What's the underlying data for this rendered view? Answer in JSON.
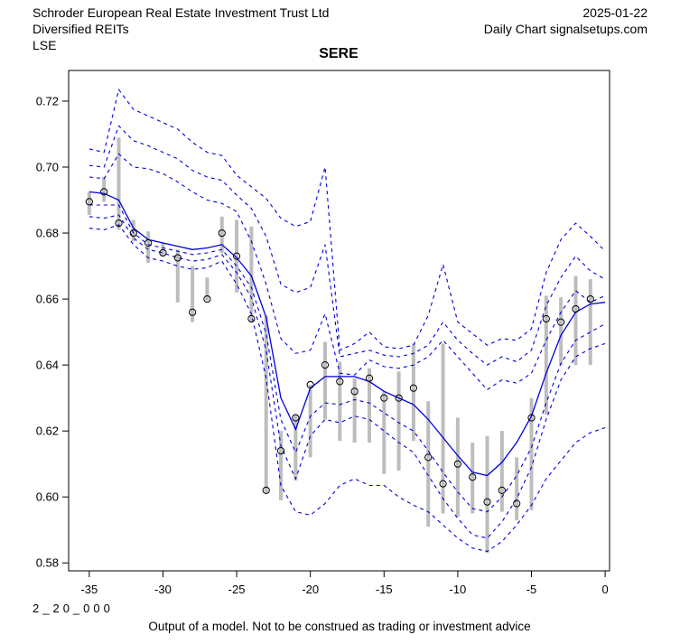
{
  "header": {
    "company": "Schroder European Real Estate Investment Trust Ltd",
    "sector": "Diversified REITs",
    "exchange": "LSE",
    "date": "2025-01-22",
    "chart_source": "Daily Chart signalsetups.com"
  },
  "title": "SERE",
  "footer": {
    "model_id": "2_20_000",
    "disclaimer": "Output of a model. Not to be construed as trading or investment advice"
  },
  "colors": {
    "model_line_blue": "#0000dd",
    "price_bar_gray": "#bdbdbd",
    "marker_stroke_black": "#000000",
    "axis_black": "#000000"
  },
  "chart_data": {
    "type": "line",
    "title": "SERE",
    "xlabel": "",
    "ylabel": "",
    "grid": false,
    "legend": "none",
    "xlim": [
      -36.4,
      0.3
    ],
    "ylim": [
      0.5776,
      0.7293
    ],
    "x_ticks": [
      -35,
      -30,
      -25,
      -20,
      -15,
      -10,
      -5,
      0
    ],
    "y_ticks": [
      0.58,
      0.6,
      0.62,
      0.64,
      0.66,
      0.68,
      0.7,
      0.72
    ],
    "x": [
      -35,
      -34,
      -33,
      -32,
      -31,
      -30,
      -29,
      -28,
      -27,
      -26,
      -25,
      -24,
      -23,
      -22,
      -21,
      -20,
      -19,
      -18,
      -17,
      -16,
      -15,
      -14,
      -13,
      -12,
      -11,
      -10,
      -9,
      -8,
      -7,
      -6,
      -5,
      -4,
      -3,
      -2,
      -1,
      0
    ],
    "series": [
      {
        "name": "lower-quantile-3",
        "style": "dashed",
        "values": [
          0.6815,
          0.681,
          0.6825,
          0.6765,
          0.6725,
          0.6715,
          0.67,
          0.669,
          0.6695,
          0.6715,
          0.6645,
          0.6555,
          0.636,
          0.6035,
          0.5955,
          0.5945,
          0.598,
          0.6035,
          0.6055,
          0.6035,
          0.6035,
          0.6,
          0.5975,
          0.5955,
          0.5915,
          0.5875,
          0.5845,
          0.5835,
          0.5865,
          0.5915,
          0.5975,
          0.6055,
          0.611,
          0.6165,
          0.6195,
          0.621
        ]
      },
      {
        "name": "lower-quantile-2",
        "style": "dashed",
        "values": [
          0.685,
          0.6845,
          0.6855,
          0.6785,
          0.675,
          0.674,
          0.6725,
          0.6715,
          0.672,
          0.6735,
          0.668,
          0.6605,
          0.6445,
          0.6155,
          0.6055,
          0.6185,
          0.6235,
          0.6225,
          0.6245,
          0.6235,
          0.62,
          0.6165,
          0.6135,
          0.6065,
          0.5995,
          0.5935,
          0.5885,
          0.5875,
          0.5925,
          0.5995,
          0.609,
          0.6235,
          0.6355,
          0.6425,
          0.645,
          0.6465
        ]
      },
      {
        "name": "lower-quantile-1",
        "style": "dashed",
        "values": [
          0.6885,
          0.6885,
          0.6885,
          0.68,
          0.6765,
          0.6755,
          0.6745,
          0.6735,
          0.674,
          0.675,
          0.67,
          0.6635,
          0.6495,
          0.6235,
          0.6135,
          0.6245,
          0.6285,
          0.628,
          0.6295,
          0.6285,
          0.6255,
          0.6225,
          0.62,
          0.614,
          0.6075,
          0.6015,
          0.5965,
          0.5955,
          0.6,
          0.6065,
          0.615,
          0.6285,
          0.6405,
          0.6475,
          0.65,
          0.6525
        ]
      },
      {
        "name": "median",
        "style": "solid",
        "values": [
          0.6925,
          0.692,
          0.69,
          0.6815,
          0.678,
          0.677,
          0.676,
          0.675,
          0.6755,
          0.6765,
          0.6725,
          0.667,
          0.6545,
          0.63,
          0.6205,
          0.633,
          0.6365,
          0.6365,
          0.6365,
          0.635,
          0.632,
          0.63,
          0.628,
          0.6235,
          0.618,
          0.6125,
          0.6075,
          0.6065,
          0.6105,
          0.6165,
          0.6245,
          0.6375,
          0.649,
          0.656,
          0.6585,
          0.659
        ]
      },
      {
        "name": "upper-quantile-1",
        "style": "dashed",
        "values": [
          0.697,
          0.6965,
          0.704,
          0.7,
          0.6995,
          0.698,
          0.6955,
          0.6925,
          0.69,
          0.689,
          0.6865,
          0.6775,
          0.6645,
          0.648,
          0.6435,
          0.6445,
          0.6555,
          0.6375,
          0.637,
          0.6415,
          0.6395,
          0.639,
          0.64,
          0.6425,
          0.6475,
          0.6425,
          0.6375,
          0.6325,
          0.6355,
          0.6345,
          0.6375,
          0.6475,
          0.656,
          0.6625,
          0.659,
          0.661
        ]
      },
      {
        "name": "upper-quantile-2",
        "style": "dashed",
        "values": [
          0.7005,
          0.7,
          0.7125,
          0.708,
          0.7065,
          0.7045,
          0.7025,
          0.699,
          0.697,
          0.696,
          0.6915,
          0.6875,
          0.679,
          0.6645,
          0.662,
          0.6635,
          0.6765,
          0.6425,
          0.6435,
          0.6445,
          0.643,
          0.6425,
          0.6435,
          0.646,
          0.653,
          0.6475,
          0.6435,
          0.64,
          0.6425,
          0.641,
          0.6445,
          0.658,
          0.6665,
          0.673,
          0.6685,
          0.666
        ]
      },
      {
        "name": "upper-quantile-3",
        "style": "dashed",
        "values": [
          0.7055,
          0.7045,
          0.7235,
          0.7175,
          0.7155,
          0.7135,
          0.7115,
          0.7075,
          0.7045,
          0.7035,
          0.6975,
          0.694,
          0.6905,
          0.6845,
          0.682,
          0.6835,
          0.7,
          0.6445,
          0.6465,
          0.65,
          0.6455,
          0.645,
          0.646,
          0.655,
          0.6705,
          0.653,
          0.6495,
          0.646,
          0.648,
          0.6475,
          0.651,
          0.668,
          0.678,
          0.683,
          0.679,
          0.6745
        ]
      }
    ],
    "price_bars": {
      "x": [
        -35,
        -34,
        -33,
        -32,
        -31,
        -30,
        -29,
        -28,
        -27,
        -26,
        -25,
        -24,
        -23,
        -22,
        -21,
        -20,
        -19,
        -18,
        -17,
        -16,
        -15,
        -14,
        -13,
        -12,
        -11,
        -10,
        -9,
        -8,
        -7,
        -6,
        -5,
        -4,
        -3,
        -2,
        -1
      ],
      "low": [
        0.6855,
        0.6895,
        0.681,
        0.6775,
        0.671,
        0.673,
        0.659,
        0.653,
        0.6595,
        0.674,
        0.662,
        0.653,
        0.601,
        0.599,
        0.605,
        0.612,
        0.6235,
        0.617,
        0.6165,
        0.6165,
        0.607,
        0.608,
        0.617,
        0.591,
        0.595,
        0.594,
        0.595,
        0.583,
        0.5955,
        0.593,
        0.596,
        0.625,
        0.64,
        0.64,
        0.64
      ],
      "high": [
        0.6925,
        0.697,
        0.709,
        0.684,
        0.6805,
        0.677,
        0.675,
        0.67,
        0.6665,
        0.685,
        0.684,
        0.682,
        0.655,
        0.62,
        0.625,
        0.634,
        0.647,
        0.641,
        0.636,
        0.639,
        0.632,
        0.638,
        0.6465,
        0.629,
        0.6465,
        0.624,
        0.6165,
        0.6185,
        0.62,
        0.612,
        0.63,
        0.661,
        0.6605,
        0.667,
        0.666
      ],
      "close": [
        0.6895,
        0.6925,
        0.683,
        0.68,
        0.677,
        0.674,
        0.6725,
        0.656,
        0.66,
        0.68,
        0.673,
        0.654,
        0.602,
        0.614,
        0.624,
        0.634,
        0.64,
        0.635,
        0.632,
        0.636,
        0.63,
        0.63,
        0.633,
        0.612,
        0.604,
        0.61,
        0.606,
        0.5985,
        0.602,
        0.598,
        0.624,
        0.654,
        0.653,
        0.657,
        0.66
      ]
    }
  }
}
